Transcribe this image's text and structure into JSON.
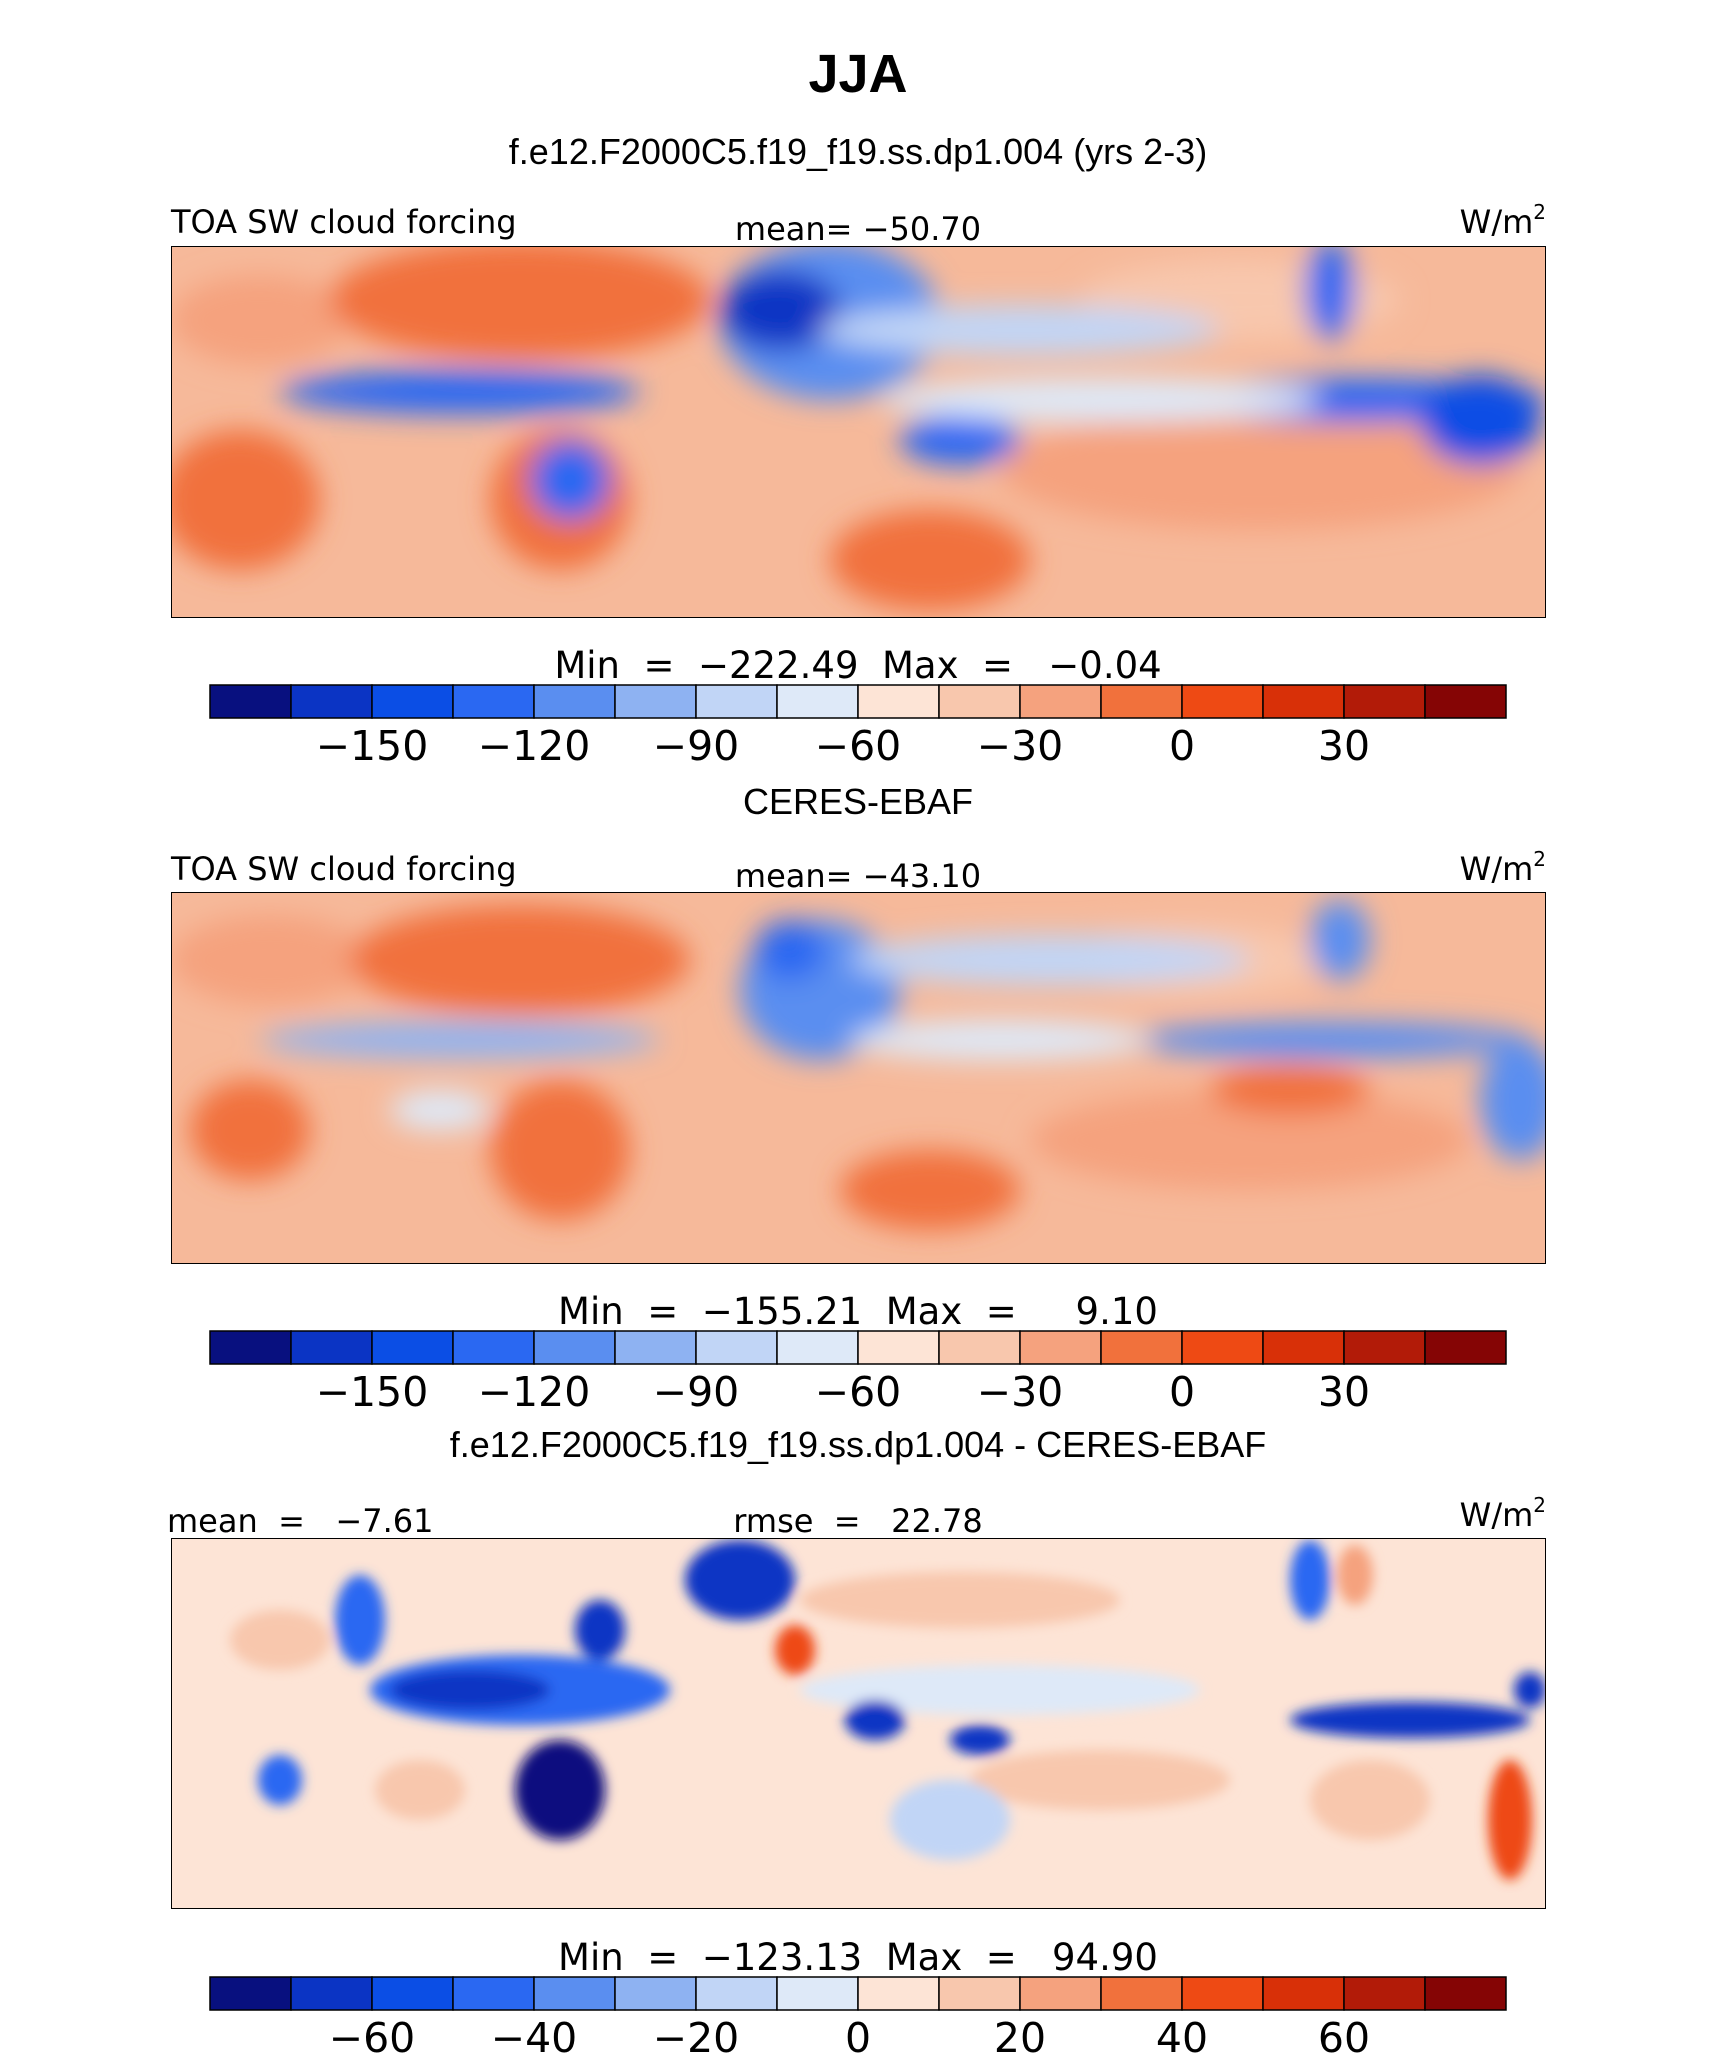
{
  "figure": {
    "title": "JJA",
    "units": "W/m",
    "units_exp": "2"
  },
  "chart_data": [
    {
      "type": "heatmap",
      "panel_title": "f.e12.F2000C5.f19_f19.ss.dp1.004 (yrs 2-3)",
      "left_label": "TOA SW cloud forcing",
      "center_label": "mean=  −50.70",
      "stats": "Min  =  −222.49  Max  =   −0.04",
      "mean": -50.7,
      "min": -222.49,
      "max": -0.04,
      "colorbar_ticks": [
        "−150",
        "−120",
        "−90",
        "−60",
        "−30",
        "0",
        "30"
      ],
      "colorbar_tick_values": [
        -150,
        -120,
        -90,
        -60,
        -30,
        0,
        30
      ],
      "colorbar_levels": [
        -165,
        -150,
        -135,
        -120,
        -105,
        -90,
        -75,
        -60,
        -45,
        -30,
        -15,
        0,
        15,
        30,
        45
      ]
    },
    {
      "type": "heatmap",
      "panel_title": "CERES-EBAF",
      "left_label": "TOA SW cloud forcing",
      "center_label": "mean=  −43.10",
      "stats": "Min  =  −155.21  Max  =     9.10",
      "mean": -43.1,
      "min": -155.21,
      "max": 9.1,
      "colorbar_ticks": [
        "−150",
        "−120",
        "−90",
        "−60",
        "−30",
        "0",
        "30"
      ],
      "colorbar_tick_values": [
        -150,
        -120,
        -90,
        -60,
        -30,
        0,
        30
      ],
      "colorbar_levels": [
        -165,
        -150,
        -135,
        -120,
        -105,
        -90,
        -75,
        -60,
        -45,
        -30,
        -15,
        0,
        15,
        30,
        45
      ]
    },
    {
      "type": "heatmap",
      "panel_title": "f.e12.F2000C5.f19_f19.ss.dp1.004 - CERES-EBAF",
      "left_label": "mean  =   −7.61",
      "center_label": "rmse  =   22.78",
      "stats": "Min  =  −123.13  Max  =   94.90",
      "mean": -7.61,
      "rmse": 22.78,
      "min": -123.13,
      "max": 94.9,
      "colorbar_ticks": [
        "−60",
        "−40",
        "−20",
        "0",
        "20",
        "40",
        "60"
      ],
      "colorbar_tick_values": [
        -60,
        -40,
        -20,
        0,
        20,
        40,
        60
      ],
      "colorbar_levels": [
        -70,
        -60,
        -50,
        -40,
        -30,
        -20,
        -10,
        0,
        10,
        20,
        30,
        40,
        50,
        60,
        70
      ]
    }
  ],
  "colorbar_colors": [
    "#08107f",
    "#0b34c4",
    "#0b4ee5",
    "#2a68f2",
    "#5a8ef0",
    "#8eb2f2",
    "#c1d5f6",
    "#dee9f8",
    "#fde4d6",
    "#f8c7ad",
    "#f5a27e",
    "#f1713c",
    "#ee4a14",
    "#d83008",
    "#b21b08",
    "#850505"
  ]
}
